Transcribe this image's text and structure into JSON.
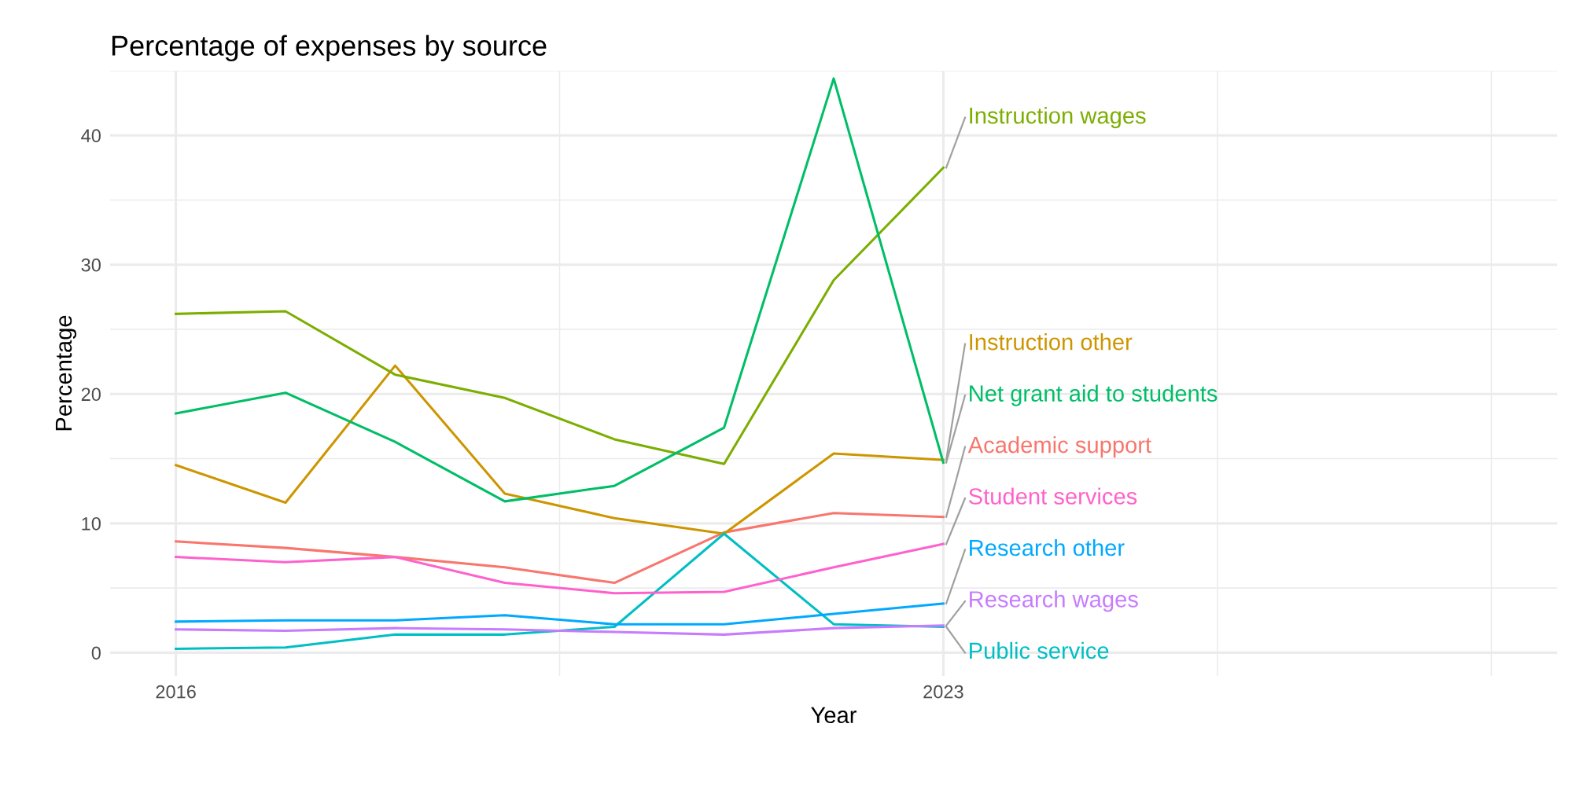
{
  "chart_data": {
    "type": "line",
    "title": "Percentage of expenses by source",
    "xlabel": "Year",
    "ylabel": "Percentage",
    "x": [
      2016,
      2017,
      2018,
      2019,
      2020,
      2021,
      2022,
      2023
    ],
    "xlim": [
      2015.4,
      2028.6
    ],
    "xticks": [
      2016,
      {
        "value": 2019.5,
        "label": null
      },
      2023,
      {
        "value": 2025.5,
        "label": null
      },
      {
        "value": 2028,
        "label": null
      }
    ],
    "ylim": [
      -1.8,
      45
    ],
    "yticks": [
      0,
      {
        "value": 5,
        "label": null
      },
      10,
      {
        "value": 15,
        "label": null
      },
      20,
      {
        "value": 25,
        "label": null
      },
      30,
      {
        "value": 35,
        "label": null
      },
      40,
      {
        "value": 45,
        "label": null
      }
    ],
    "grid": true,
    "legend": false,
    "marker": "none",
    "line_style": "solid",
    "series": [
      {
        "name": "Academic support",
        "color": "#f8766d",
        "values": [
          8.6,
          8.1,
          7.4,
          6.6,
          5.4,
          9.3,
          10.8,
          10.5
        ]
      },
      {
        "name": "Instruction other",
        "color": "#cd9600",
        "values": [
          14.5,
          11.6,
          22.2,
          12.3,
          10.4,
          9.2,
          15.4,
          14.9
        ]
      },
      {
        "name": "Instruction wages",
        "color": "#7cae00",
        "values": [
          26.2,
          26.4,
          21.5,
          19.7,
          16.5,
          14.6,
          28.8,
          37.5
        ]
      },
      {
        "name": "Net grant aid to students",
        "color": "#00be67",
        "values": [
          18.5,
          20.1,
          16.3,
          11.7,
          12.9,
          17.4,
          44.4,
          14.7
        ]
      },
      {
        "name": "Public service",
        "color": "#00bfc4",
        "values": [
          0.3,
          0.4,
          1.4,
          1.4,
          2.0,
          9.2,
          2.2,
          2.0
        ]
      },
      {
        "name": "Research other",
        "color": "#00a9ff",
        "values": [
          2.4,
          2.5,
          2.5,
          2.9,
          2.2,
          2.2,
          3.0,
          3.8
        ]
      },
      {
        "name": "Research wages",
        "color": "#c77cff",
        "values": [
          1.8,
          1.7,
          1.9,
          1.8,
          1.6,
          1.4,
          1.9,
          2.1
        ]
      },
      {
        "name": "Student services",
        "color": "#ff61cc",
        "values": [
          7.4,
          7.0,
          7.4,
          5.4,
          4.6,
          4.7,
          6.6,
          8.4
        ]
      }
    ]
  }
}
